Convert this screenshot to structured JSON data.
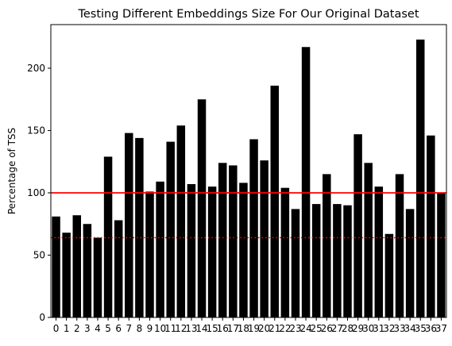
{
  "chart_data": {
    "type": "bar",
    "title": "Testing Different Embeddings Size For Our Original Dataset",
    "xlabel": "",
    "ylabel": "Percentage of TSS",
    "ylim": [
      0,
      235
    ],
    "yticks": [
      0,
      50,
      100,
      150,
      200
    ],
    "categories": [
      "0",
      "1",
      "2",
      "3",
      "4",
      "5",
      "6",
      "7",
      "8",
      "9",
      "10",
      "11",
      "12",
      "13",
      "14",
      "15",
      "16",
      "17",
      "18",
      "19",
      "20",
      "21",
      "22",
      "23",
      "24",
      "25",
      "26",
      "27",
      "28",
      "29",
      "30",
      "31",
      "32",
      "33",
      "34",
      "35",
      "36",
      "37"
    ],
    "values": [
      81,
      68,
      82,
      75,
      64,
      129,
      78,
      148,
      144,
      101,
      109,
      141,
      154,
      107,
      175,
      105,
      124,
      122,
      108,
      143,
      126,
      186,
      104,
      87,
      217,
      91,
      115,
      91,
      90,
      147,
      124,
      105,
      67,
      115,
      87,
      223,
      146,
      100
    ],
    "bar_color": "#000000",
    "reference_lines": [
      {
        "y": 100,
        "style": "solid",
        "color": "#ff0000"
      },
      {
        "y": 64,
        "style": "dotted",
        "color": "#ff0000"
      }
    ],
    "grid": false,
    "legend": "none"
  }
}
